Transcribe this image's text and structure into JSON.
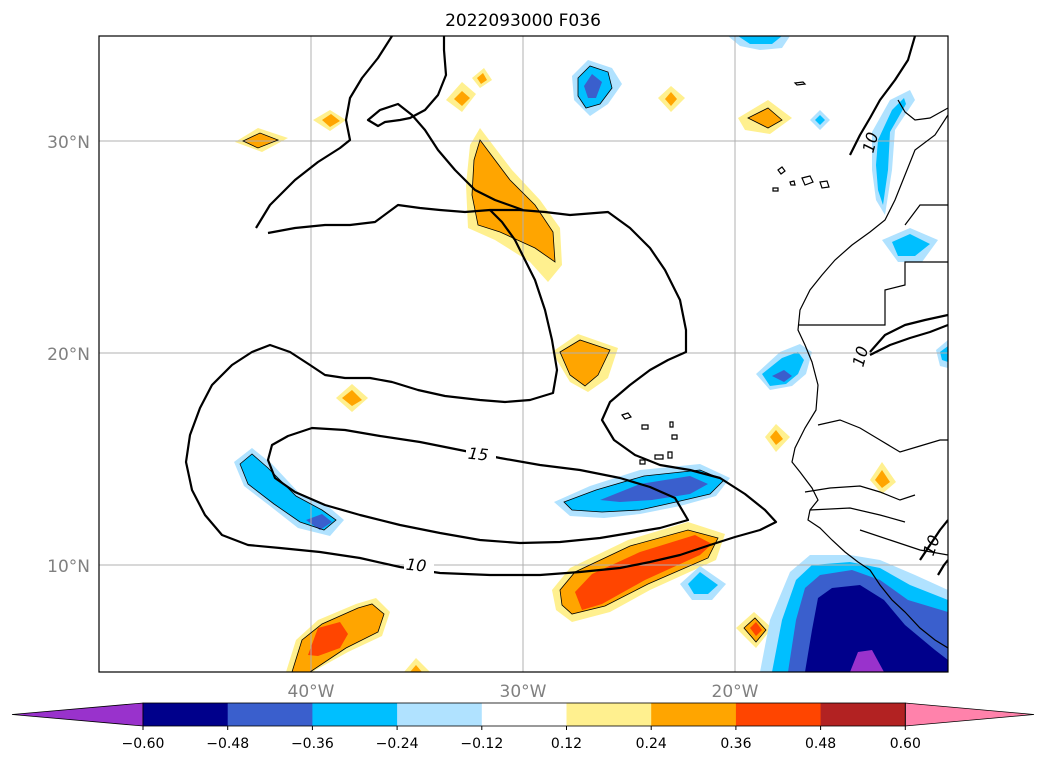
{
  "title": "2022093000 F036",
  "latitude_labels": [
    "30°N",
    "20°N",
    "10°N"
  ],
  "longitude_labels": [
    "40°W",
    "30°W",
    "20°W"
  ],
  "contour_labels": [
    "15",
    "10",
    "10",
    "10",
    "10"
  ],
  "colorbar": {
    "colors": [
      "#9932cc",
      "#00008b",
      "#3a5fcd",
      "#00bfff",
      "#b0e2ff",
      "#ffffff",
      "#fff08f",
      "#ffa500",
      "#ff4500",
      "#b22222",
      "#ff82ab"
    ],
    "tick_labels": [
      "−0.60",
      "−0.48",
      "−0.36",
      "−0.24",
      "−0.12",
      "0.12",
      "0.24",
      "0.36",
      "0.48",
      "0.60"
    ]
  },
  "colors": {
    "grid": "#b0b0b0",
    "coast": "#000000",
    "contour": "#000000"
  }
}
